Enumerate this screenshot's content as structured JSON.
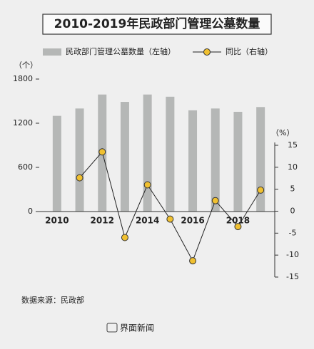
{
  "chart_data": {
    "type": "bar-line",
    "title": "2010-2019年民政部门管理公墓数量",
    "y_label": "（个）",
    "y2_label": "（%）",
    "categories": [
      "2010",
      null,
      "2012",
      null,
      "2014",
      null,
      "2016",
      null,
      "2018",
      null
    ],
    "series": [
      {
        "name": "民政部门管理公墓数量（左轴）",
        "type": "bar",
        "color": "#b5b7b6",
        "axis": "y",
        "values": [
          1300,
          1400,
          1590,
          1490,
          1590,
          1560,
          1375,
          1400,
          1355,
          1420
        ]
      },
      {
        "name": "同比（右轴）",
        "type": "line",
        "color": "#222222",
        "marker_color": "#f0c030",
        "axis": "y2",
        "values": [
          null,
          7.6,
          13.5,
          -6,
          6,
          -1.8,
          -11.3,
          2.4,
          -3.5,
          4.8
        ]
      }
    ],
    "ylim": [
      0,
      1800
    ],
    "yticks": [
      0,
      600,
      1200,
      1800
    ],
    "y2lim": [
      -15,
      15
    ],
    "y2ticks": [
      -15,
      -10,
      -5,
      0,
      5,
      10,
      15
    ],
    "source": "数据来源：民政部",
    "footer": "界面新闻"
  }
}
